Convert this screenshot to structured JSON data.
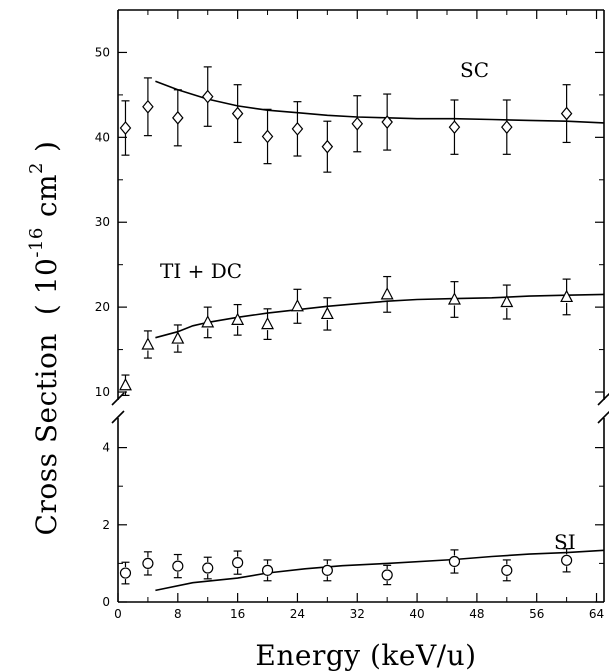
{
  "chart_data": {
    "type": "scatter",
    "title": "",
    "xlabel": "Energy (keV/u)",
    "ylabel": {
      "main": "Cross Section",
      "unit_open": "( 10",
      "unit_exp": "-16",
      "unit_mid": "cm",
      "unit_exp2": "2",
      "unit_close": ")"
    },
    "x_ticks": [
      "0",
      "8",
      "16",
      "24",
      "32",
      "40",
      "48",
      "56",
      "64"
    ],
    "x_tick_values": [
      0,
      8,
      16,
      24,
      32,
      40,
      48,
      56,
      64
    ],
    "xlim": [
      0,
      65
    ],
    "axis_break": true,
    "upper_panel": {
      "ylim": [
        8,
        55
      ],
      "y_ticks": [
        "10",
        "20",
        "30",
        "40",
        "50"
      ],
      "y_tick_values": [
        10,
        20,
        30,
        40,
        50
      ]
    },
    "lower_panel": {
      "ylim": [
        0,
        5
      ],
      "y_ticks": [
        "0",
        "2",
        "4"
      ],
      "y_tick_values": [
        0,
        2,
        4
      ]
    },
    "series": [
      {
        "name": "SC",
        "panel": "upper",
        "marker": "diamond",
        "x": [
          1,
          4,
          8,
          12,
          16,
          20,
          24,
          28,
          32,
          36,
          45,
          52,
          60
        ],
        "y": [
          41.1,
          43.6,
          42.3,
          44.8,
          42.8,
          40.1,
          41.0,
          38.9,
          41.6,
          41.8,
          41.2,
          41.2,
          42.8
        ],
        "err": [
          3.2,
          3.4,
          3.3,
          3.5,
          3.4,
          3.2,
          3.2,
          3.0,
          3.3,
          3.3,
          3.2,
          3.2,
          3.4
        ],
        "curve_x": [
          5,
          8,
          12,
          16,
          20,
          24,
          28,
          32,
          36,
          40,
          45,
          50,
          55,
          60,
          65
        ],
        "curve_y": [
          46.6,
          45.6,
          44.5,
          43.7,
          43.2,
          42.9,
          42.6,
          42.4,
          42.3,
          42.2,
          42.2,
          42.1,
          42.0,
          41.9,
          41.7
        ]
      },
      {
        "name": "TI + DC",
        "panel": "upper",
        "marker": "triangle",
        "x": [
          1,
          4,
          8,
          12,
          16,
          20,
          24,
          28,
          36,
          45,
          52,
          60
        ],
        "y": [
          10.8,
          15.6,
          16.3,
          18.2,
          18.5,
          18.0,
          20.1,
          19.2,
          21.5,
          20.9,
          20.6,
          21.2
        ],
        "err": [
          1.2,
          1.6,
          1.6,
          1.8,
          1.8,
          1.8,
          2.0,
          1.9,
          2.1,
          2.1,
          2.0,
          2.1
        ],
        "curve_x": [
          5,
          8,
          10,
          12,
          16,
          20,
          24,
          28,
          32,
          36,
          40,
          45,
          50,
          55,
          60,
          65
        ],
        "curve_y": [
          16.4,
          17.1,
          17.8,
          18.2,
          18.8,
          19.3,
          19.7,
          20.1,
          20.4,
          20.7,
          20.9,
          21.0,
          21.1,
          21.3,
          21.4,
          21.5
        ]
      },
      {
        "name": "SI",
        "panel": "lower",
        "marker": "circle",
        "x": [
          1,
          4,
          8,
          12,
          16,
          20,
          28,
          36,
          45,
          52,
          60
        ],
        "y": [
          0.75,
          1.0,
          0.93,
          0.88,
          1.02,
          0.82,
          0.82,
          0.7,
          1.05,
          0.82,
          1.08
        ],
        "err": [
          0.28,
          0.3,
          0.3,
          0.28,
          0.3,
          0.27,
          0.27,
          0.25,
          0.3,
          0.27,
          0.3
        ],
        "curve_x": [
          5,
          10,
          16,
          20,
          25,
          30,
          36,
          45,
          50,
          55,
          60,
          65
        ],
        "curve_y": [
          0.3,
          0.5,
          0.62,
          0.75,
          0.86,
          0.94,
          1.0,
          1.1,
          1.18,
          1.24,
          1.28,
          1.34
        ]
      }
    ]
  }
}
